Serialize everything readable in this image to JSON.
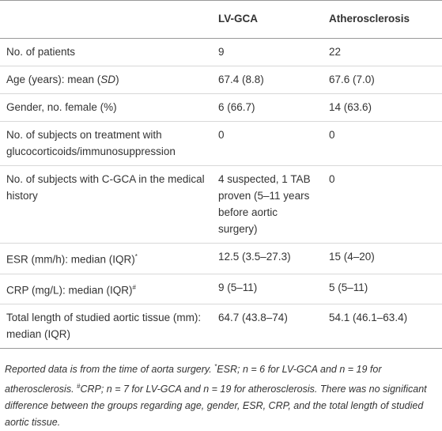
{
  "table": {
    "header": [
      "LV-GCA",
      "Atherosclerosis"
    ],
    "rows": [
      {
        "label": [
          "No. of patients"
        ],
        "values": [
          "9",
          "22"
        ]
      },
      {
        "label": [
          "Age (years): mean (",
          "SD",
          ")"
        ],
        "values": [
          "67.4 (8.8)",
          "67.6 (7.0)"
        ]
      },
      {
        "label": [
          "Gender, no. female (%)"
        ],
        "values": [
          "6 (66.7)",
          "14 (63.6)"
        ]
      },
      {
        "label": [
          "No. of subjects on treatment with glucocorticoids/immunosuppression"
        ],
        "values": [
          "0",
          "0"
        ]
      },
      {
        "label": [
          "No. of subjects with C-GCA in the medical history"
        ],
        "values": [
          "4 suspected, 1 TAB proven (5–11 years before aortic surgery)",
          "0"
        ]
      },
      {
        "label": [
          "ESR (mm/h): median (IQR)",
          "*"
        ],
        "values": [
          "12.5 (3.5–27.3)",
          "15 (4–20)"
        ]
      },
      {
        "label": [
          "CRP (mg/L): median (IQR)",
          "#"
        ],
        "values": [
          "9 (5–11)",
          "5 (5–11)"
        ]
      },
      {
        "label": [
          "Total length of studied aortic tissue (mm): median (IQR)"
        ],
        "values": [
          "64.7 (43.8–74)",
          "54.1 (46.1–63.4)"
        ]
      }
    ]
  },
  "footnote": [
    "Reported data is from the time of aorta surgery. ",
    "*",
    "ESR; n = 6 for LV-GCA and n = 19 for atherosclerosis. ",
    "#",
    "CRP; n = 7 for LV-GCA and n = 19 for atherosclerosis. There was no significant difference between the groups regarding age, gender, ESR, CRP, and the total length of studied aortic tissue."
  ]
}
